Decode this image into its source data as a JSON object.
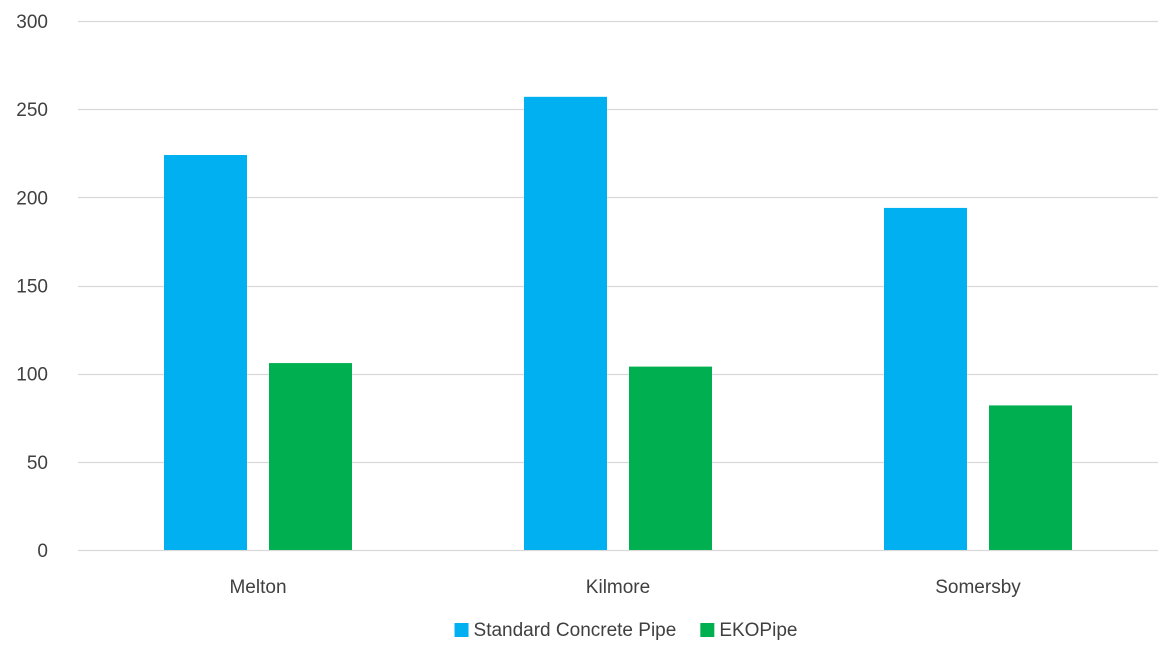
{
  "chart_data": {
    "type": "bar",
    "title": "",
    "xlabel": "",
    "ylabel": "",
    "categories": [
      "Melton",
      "Kilmore",
      "Somersby"
    ],
    "series": [
      {
        "name": "Standard Concrete Pipe",
        "color": "#00b0f0",
        "values": [
          224,
          257,
          194
        ]
      },
      {
        "name": "EKOPipe",
        "color": "#00b050",
        "values": [
          106,
          104,
          82
        ]
      }
    ],
    "ylim": [
      0,
      300
    ],
    "yticks": [
      0,
      50,
      100,
      150,
      200,
      250,
      300
    ],
    "grid": true,
    "gridline_color": "#d9d9d9",
    "legend_position": "bottom-center"
  }
}
